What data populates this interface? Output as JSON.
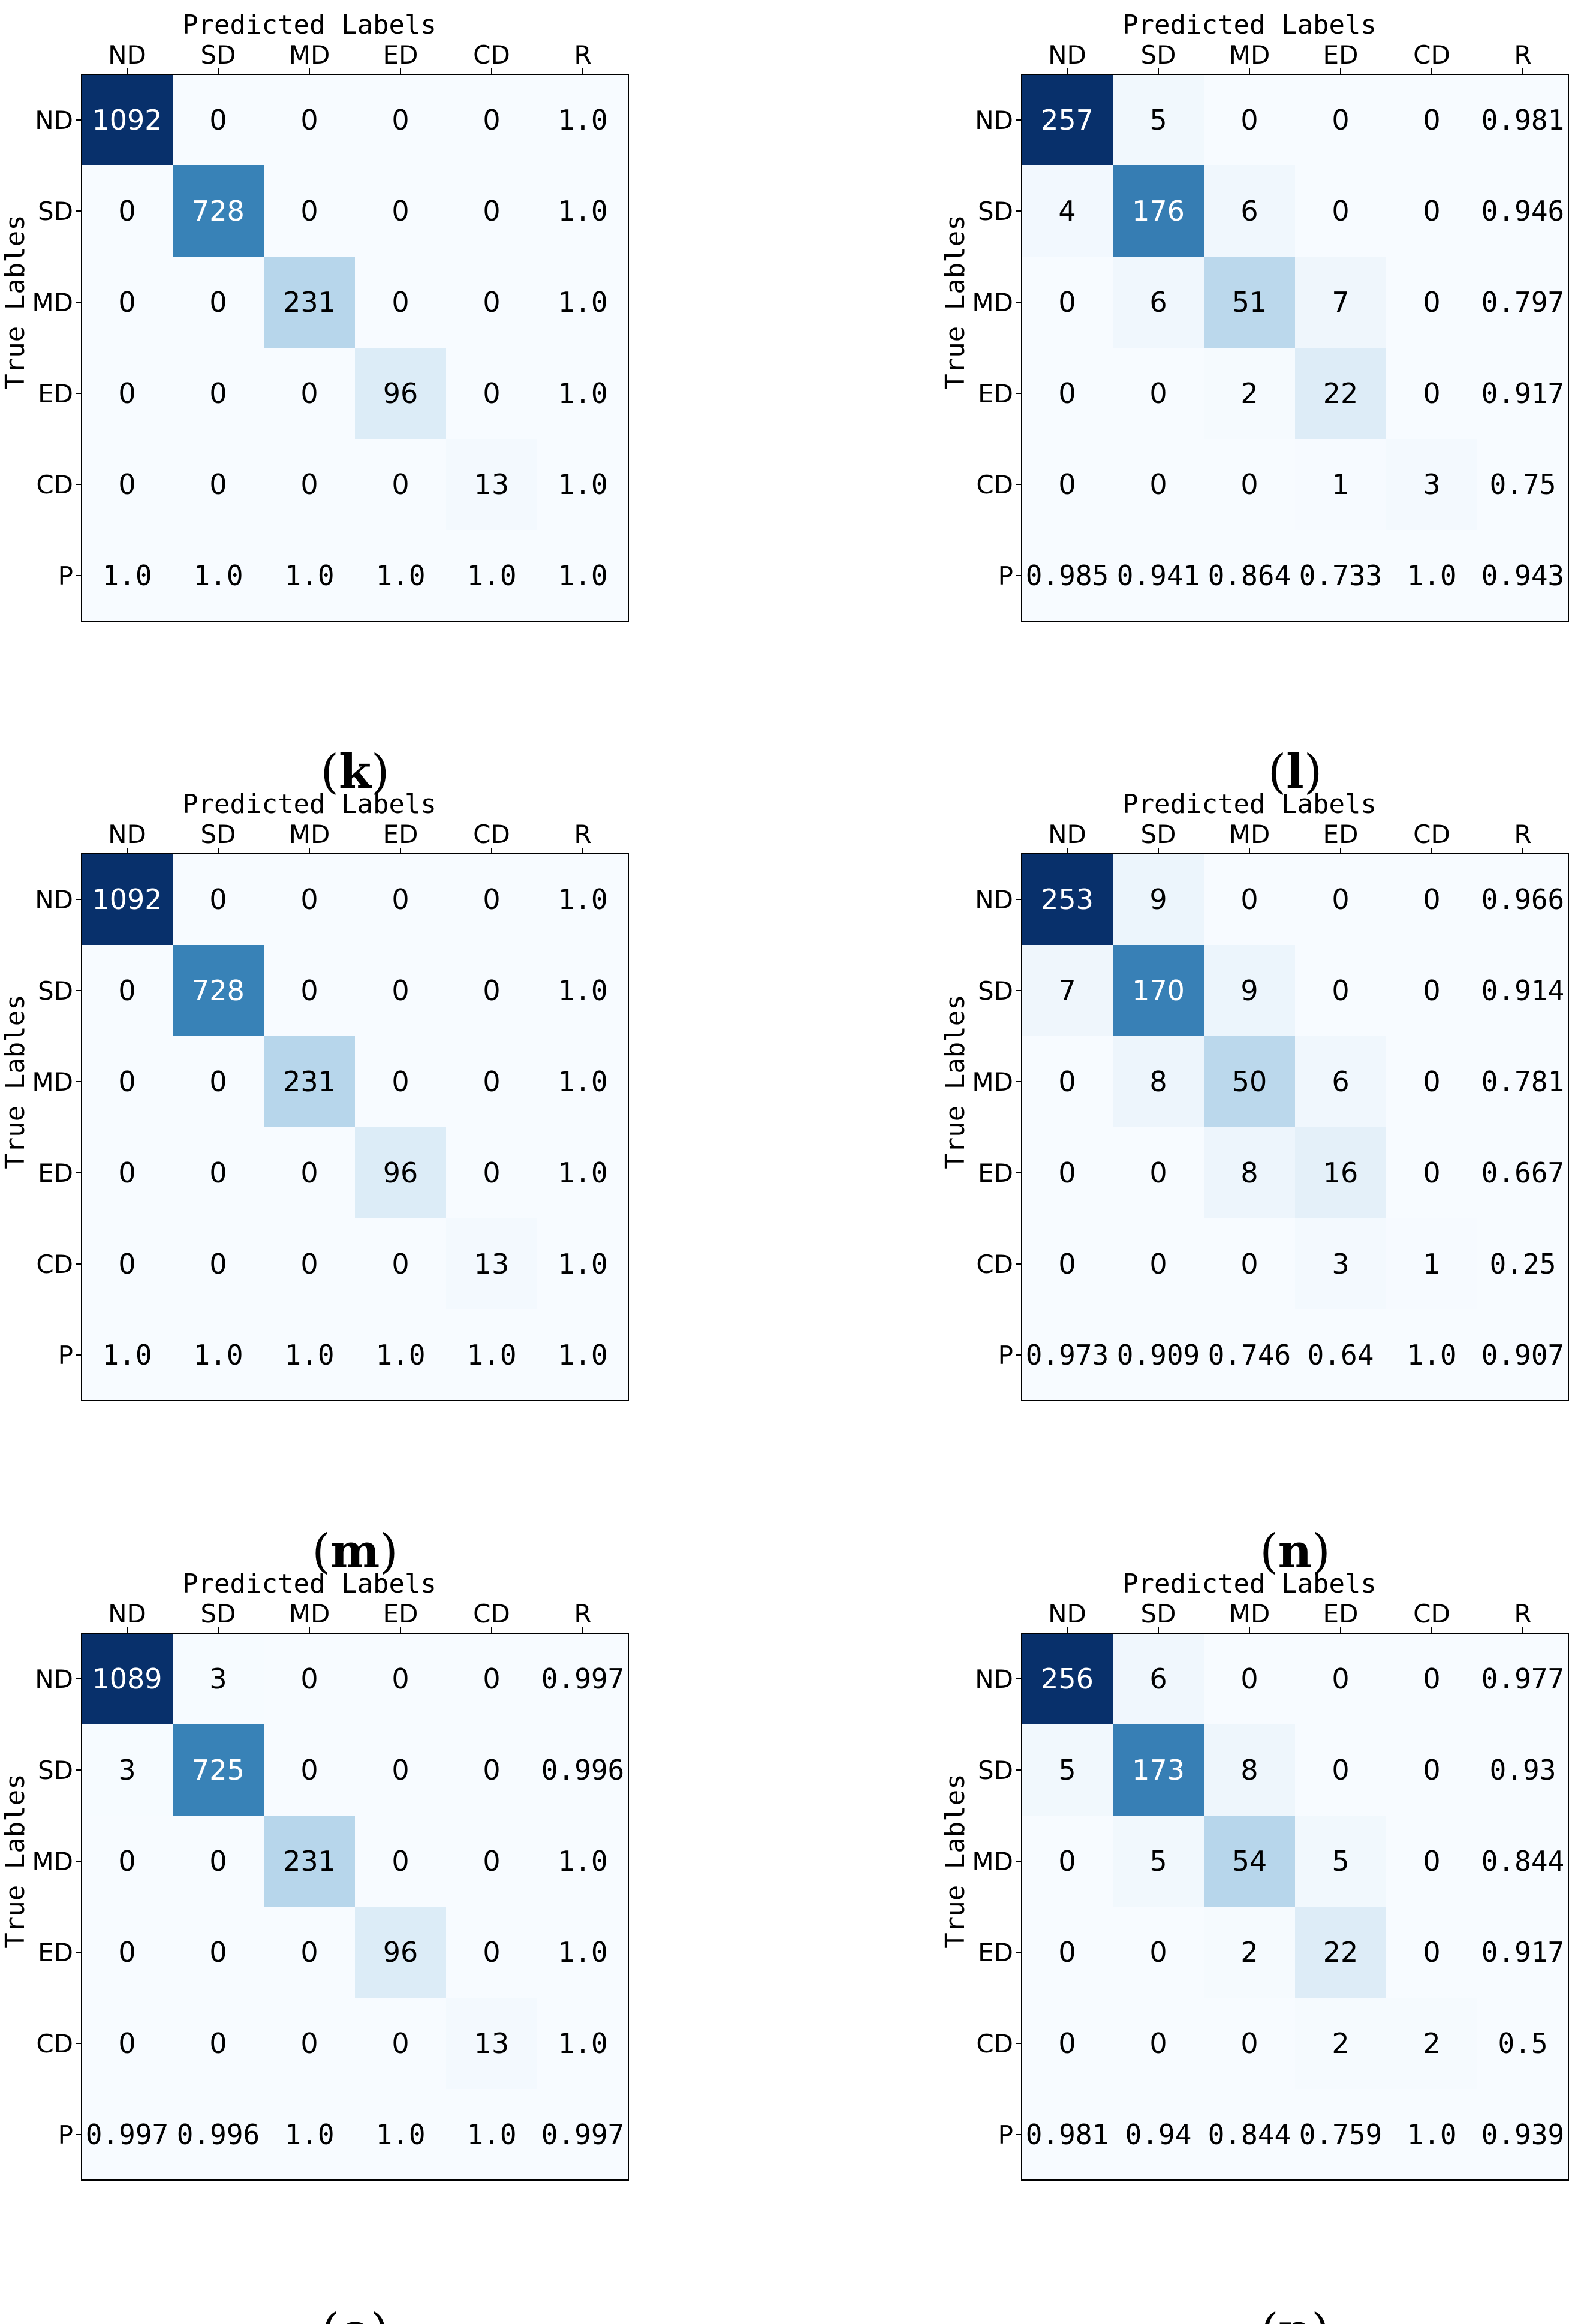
{
  "axis_titles": {
    "x": "Predicted Labels",
    "y": "True Lables"
  },
  "col_labels": [
    "ND",
    "SD",
    "MD",
    "ED",
    "CD",
    "R"
  ],
  "row_labels": [
    "ND",
    "SD",
    "MD",
    "ED",
    "CD",
    "P"
  ],
  "colormap": {
    "low": "#f7fbff",
    "high": "#08306b",
    "text_dark": "#000000",
    "text_light": "#ffffff"
  },
  "chart_data": [
    {
      "type": "heatmap",
      "panel": "(k)",
      "title": "",
      "xlabel": "Predicted Labels",
      "ylabel": "True Lables",
      "classes": [
        "ND",
        "SD",
        "MD",
        "ED",
        "CD"
      ],
      "matrix": [
        [
          1092,
          0,
          0,
          0,
          0
        ],
        [
          0,
          728,
          0,
          0,
          0
        ],
        [
          0,
          0,
          231,
          0,
          0
        ],
        [
          0,
          0,
          0,
          96,
          0
        ],
        [
          0,
          0,
          0,
          0,
          13
        ]
      ],
      "recall": [
        "1.0",
        "1.0",
        "1.0",
        "1.0",
        "1.0"
      ],
      "precision": [
        "1.0",
        "1.0",
        "1.0",
        "1.0",
        "1.0"
      ],
      "overall": "1.0",
      "color_max": 1092
    },
    {
      "type": "heatmap",
      "panel": "(l)",
      "title": "",
      "xlabel": "Predicted Labels",
      "ylabel": "True Lables",
      "classes": [
        "ND",
        "SD",
        "MD",
        "ED",
        "CD"
      ],
      "matrix": [
        [
          257,
          5,
          0,
          0,
          0
        ],
        [
          4,
          176,
          6,
          0,
          0
        ],
        [
          0,
          6,
          51,
          7,
          0
        ],
        [
          0,
          0,
          2,
          22,
          0
        ],
        [
          0,
          0,
          0,
          1,
          3
        ]
      ],
      "recall": [
        "0.981",
        "0.946",
        "0.797",
        "0.917",
        "0.75"
      ],
      "precision": [
        "0.985",
        "0.941",
        "0.864",
        "0.733",
        "1.0"
      ],
      "overall": "0.943",
      "color_max": 257
    },
    {
      "type": "heatmap",
      "panel": "(m)",
      "title": "",
      "xlabel": "Predicted Labels",
      "ylabel": "True Lables",
      "classes": [
        "ND",
        "SD",
        "MD",
        "ED",
        "CD"
      ],
      "matrix": [
        [
          1092,
          0,
          0,
          0,
          0
        ],
        [
          0,
          728,
          0,
          0,
          0
        ],
        [
          0,
          0,
          231,
          0,
          0
        ],
        [
          0,
          0,
          0,
          96,
          0
        ],
        [
          0,
          0,
          0,
          0,
          13
        ]
      ],
      "recall": [
        "1.0",
        "1.0",
        "1.0",
        "1.0",
        "1.0"
      ],
      "precision": [
        "1.0",
        "1.0",
        "1.0",
        "1.0",
        "1.0"
      ],
      "overall": "1.0",
      "color_max": 1092
    },
    {
      "type": "heatmap",
      "panel": "(n)",
      "title": "",
      "xlabel": "Predicted Labels",
      "ylabel": "True Lables",
      "classes": [
        "ND",
        "SD",
        "MD",
        "ED",
        "CD"
      ],
      "matrix": [
        [
          253,
          9,
          0,
          0,
          0
        ],
        [
          7,
          170,
          9,
          0,
          0
        ],
        [
          0,
          8,
          50,
          6,
          0
        ],
        [
          0,
          0,
          8,
          16,
          0
        ],
        [
          0,
          0,
          0,
          3,
          1
        ]
      ],
      "recall": [
        "0.966",
        "0.914",
        "0.781",
        "0.667",
        "0.25"
      ],
      "precision": [
        "0.973",
        "0.909",
        "0.746",
        "0.64",
        "1.0"
      ],
      "overall": "0.907",
      "color_max": 253
    },
    {
      "type": "heatmap",
      "panel": "(o)",
      "title": "",
      "xlabel": "Predicted Labels",
      "ylabel": "True Lables",
      "classes": [
        "ND",
        "SD",
        "MD",
        "ED",
        "CD"
      ],
      "matrix": [
        [
          1089,
          3,
          0,
          0,
          0
        ],
        [
          3,
          725,
          0,
          0,
          0
        ],
        [
          0,
          0,
          231,
          0,
          0
        ],
        [
          0,
          0,
          0,
          96,
          0
        ],
        [
          0,
          0,
          0,
          0,
          13
        ]
      ],
      "recall": [
        "0.997",
        "0.996",
        "1.0",
        "1.0",
        "1.0"
      ],
      "precision": [
        "0.997",
        "0.996",
        "1.0",
        "1.0",
        "1.0"
      ],
      "overall": "0.997",
      "color_max": 1089
    },
    {
      "type": "heatmap",
      "panel": "(p)",
      "title": "",
      "xlabel": "Predicted Labels",
      "ylabel": "True Lables",
      "classes": [
        "ND",
        "SD",
        "MD",
        "ED",
        "CD"
      ],
      "matrix": [
        [
          256,
          6,
          0,
          0,
          0
        ],
        [
          5,
          173,
          8,
          0,
          0
        ],
        [
          0,
          5,
          54,
          5,
          0
        ],
        [
          0,
          0,
          2,
          22,
          0
        ],
        [
          0,
          0,
          0,
          2,
          2
        ]
      ],
      "recall": [
        "0.977",
        "0.93",
        "0.844",
        "0.917",
        "0.5"
      ],
      "precision": [
        "0.981",
        "0.94",
        "0.844",
        "0.759",
        "1.0"
      ],
      "overall": "0.939",
      "color_max": 256
    }
  ]
}
